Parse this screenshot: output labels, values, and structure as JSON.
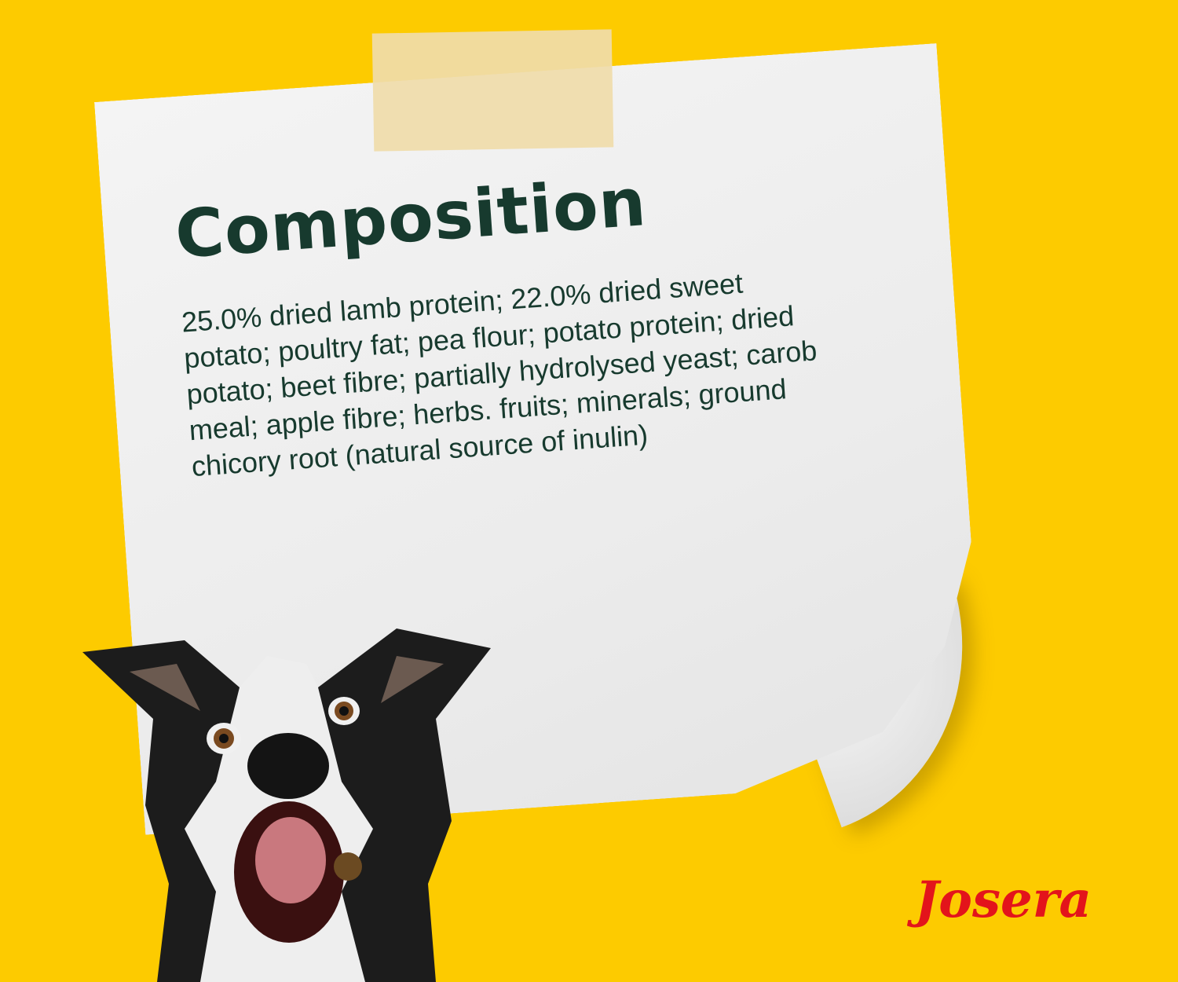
{
  "note": {
    "title": "Composition",
    "lines": [
      "25.0% dried lamb protein; 22.0% dried sweet",
      "potato; poultry fat; pea flour; potato protein; dried",
      "potato; beet fibre; partially hydrolysed yeast; carob",
      "meal; apple fibre; herbs. fruits; minerals; ground",
      "chicory root (natural source of inulin)"
    ]
  },
  "brand": {
    "logo_text": "Josera",
    "color": "#e3141b"
  },
  "colors": {
    "background": "#FDCB00",
    "text": "#173a2e"
  }
}
